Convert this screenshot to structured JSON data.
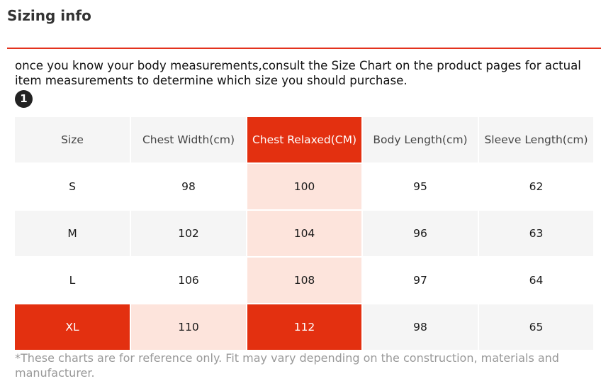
{
  "title": "Sizing info",
  "intro_text": "once you know your body measurements,consult the Size Chart on the product pages for actual item measurements to determine which size you should purchase.",
  "step_number": "1",
  "accent_color": "#e33010",
  "highlight_tint": "#fde4dc",
  "table": {
    "headers": [
      "Size",
      "Chest Width(cm)",
      "Chest Relaxed(CM)",
      "Body Length(cm)",
      "Sleeve Length(cm)"
    ],
    "rows": [
      [
        "S",
        "98",
        "100",
        "95",
        "62"
      ],
      [
        "M",
        "102",
        "104",
        "96",
        "63"
      ],
      [
        "L",
        "106",
        "108",
        "97",
        "64"
      ],
      [
        "XL",
        "110",
        "112",
        "98",
        "65"
      ]
    ],
    "highlighted_column": "Chest Relaxed(CM)",
    "highlighted_row": "XL"
  },
  "footnote": "*These charts are for reference only. Fit may vary depending on the construction, materials and manufacturer."
}
